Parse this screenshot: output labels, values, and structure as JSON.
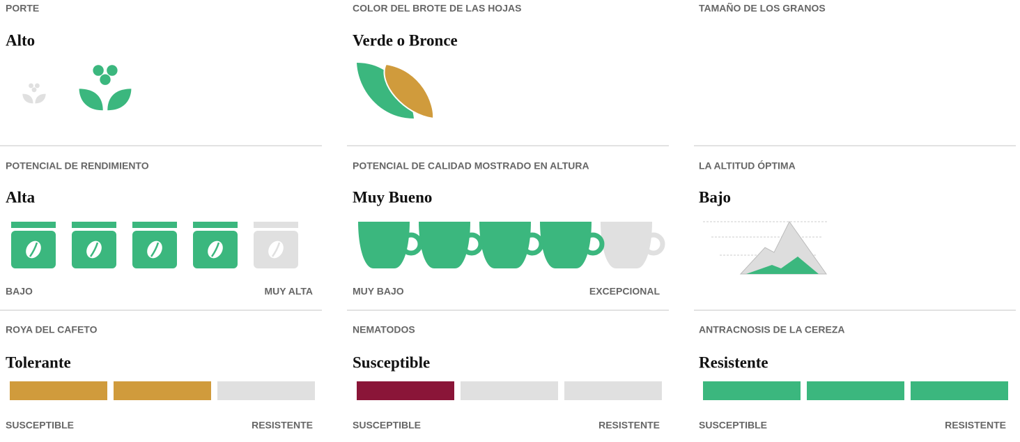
{
  "cells": [
    {
      "label": "PORTE",
      "value": "Alto",
      "visual": "plant",
      "level": 2,
      "steps": 2
    },
    {
      "label": "COLOR DEL BROTE DE LAS HOJAS",
      "value": "Verde o Bronce",
      "visual": "leaf"
    },
    {
      "label": "TAMAÑO DE LOS GRANOS",
      "visual": "none"
    },
    {
      "label": "POTENCIAL DE RENDIMIENTO",
      "value": "Alta",
      "visual": "bags",
      "level": 4,
      "steps": 5,
      "scale_min": "BAJO",
      "scale_max": "MUY ALTA",
      "color": "#3bb77e"
    },
    {
      "label": "POTENCIAL DE CALIDAD MOSTRADO EN ALTURA",
      "value": "Muy Bueno",
      "visual": "cups",
      "level": 4,
      "steps": 5,
      "scale_min": "MUY BAJO",
      "scale_max": "EXCEPCIONAL",
      "color": "#3bb77e"
    },
    {
      "label": "LA ALTITUD ÓPTIMA",
      "value": "Bajo",
      "visual": "mountain",
      "color": "#3bb77e"
    },
    {
      "label": "ROYA DEL CAFETO",
      "value": "Tolerante",
      "visual": "bars",
      "level": 2,
      "steps": 3,
      "scale_min": "SUSCEPTIBLE",
      "scale_max": "RESISTENTE",
      "color": "#d09b3c"
    },
    {
      "label": "NEMATODOS",
      "value": "Susceptible",
      "visual": "bars",
      "level": 1,
      "steps": 3,
      "scale_min": "SUSCEPTIBLE",
      "scale_max": "RESISTENTE",
      "color": "#8a1538"
    },
    {
      "label": "ANTRACNOSIS DE LA CEREZA",
      "value": "Resistente",
      "visual": "bars",
      "level": 3,
      "steps": 3,
      "scale_min": "SUSCEPTIBLE",
      "scale_max": "RESISTENTE",
      "color": "#3bb77e"
    }
  ]
}
